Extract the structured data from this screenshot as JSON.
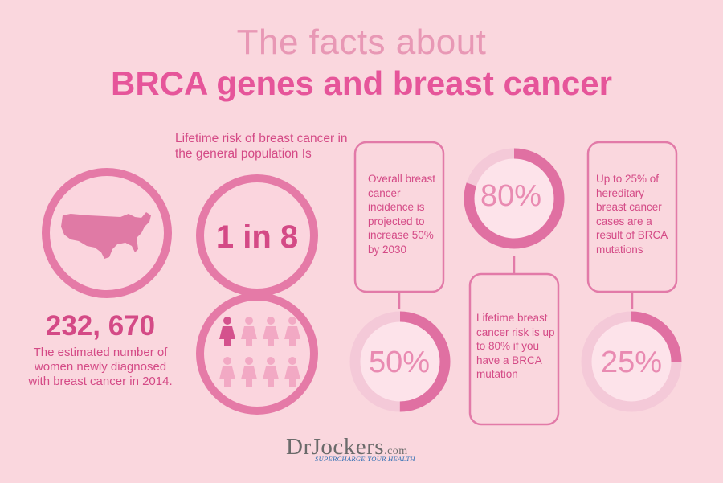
{
  "title": {
    "line1": "The facts about",
    "line2": "BRCA genes and breast cancer"
  },
  "left_stat": {
    "icon": "usa-map-icon",
    "number": "232, 670",
    "description": "The estimated number of women newly diagnosed with breast cancer in 2014."
  },
  "risk_stat": {
    "label": "Lifetime risk of breast cancer in the general population Is",
    "value": "1 in 8",
    "icon": "women-figures-icon",
    "highlighted_figures": 1,
    "total_figures": 8
  },
  "boxes": [
    {
      "text": "Overall breast cancer incidence is projected to increase 50% by 2030"
    },
    {
      "text": "Lifetime breast cancer risk is up to 80% if you have a BRCA mutation"
    },
    {
      "text": "Up to 25% of hereditary breast cancer cases are a result of BRCA mutations"
    }
  ],
  "gauges": [
    {
      "label": "80%",
      "value": 80
    },
    {
      "label": "50%",
      "value": 50
    },
    {
      "label": "25%",
      "value": 25
    }
  ],
  "logo": {
    "brand": "DrJockers",
    "domain": ".com",
    "tagline": "SUPERCHARGE YOUR HEALTH"
  },
  "colors": {
    "background": "#fad7de",
    "accent": "#e070a2",
    "text": "#d44a86",
    "light": "#f3bfd1"
  }
}
